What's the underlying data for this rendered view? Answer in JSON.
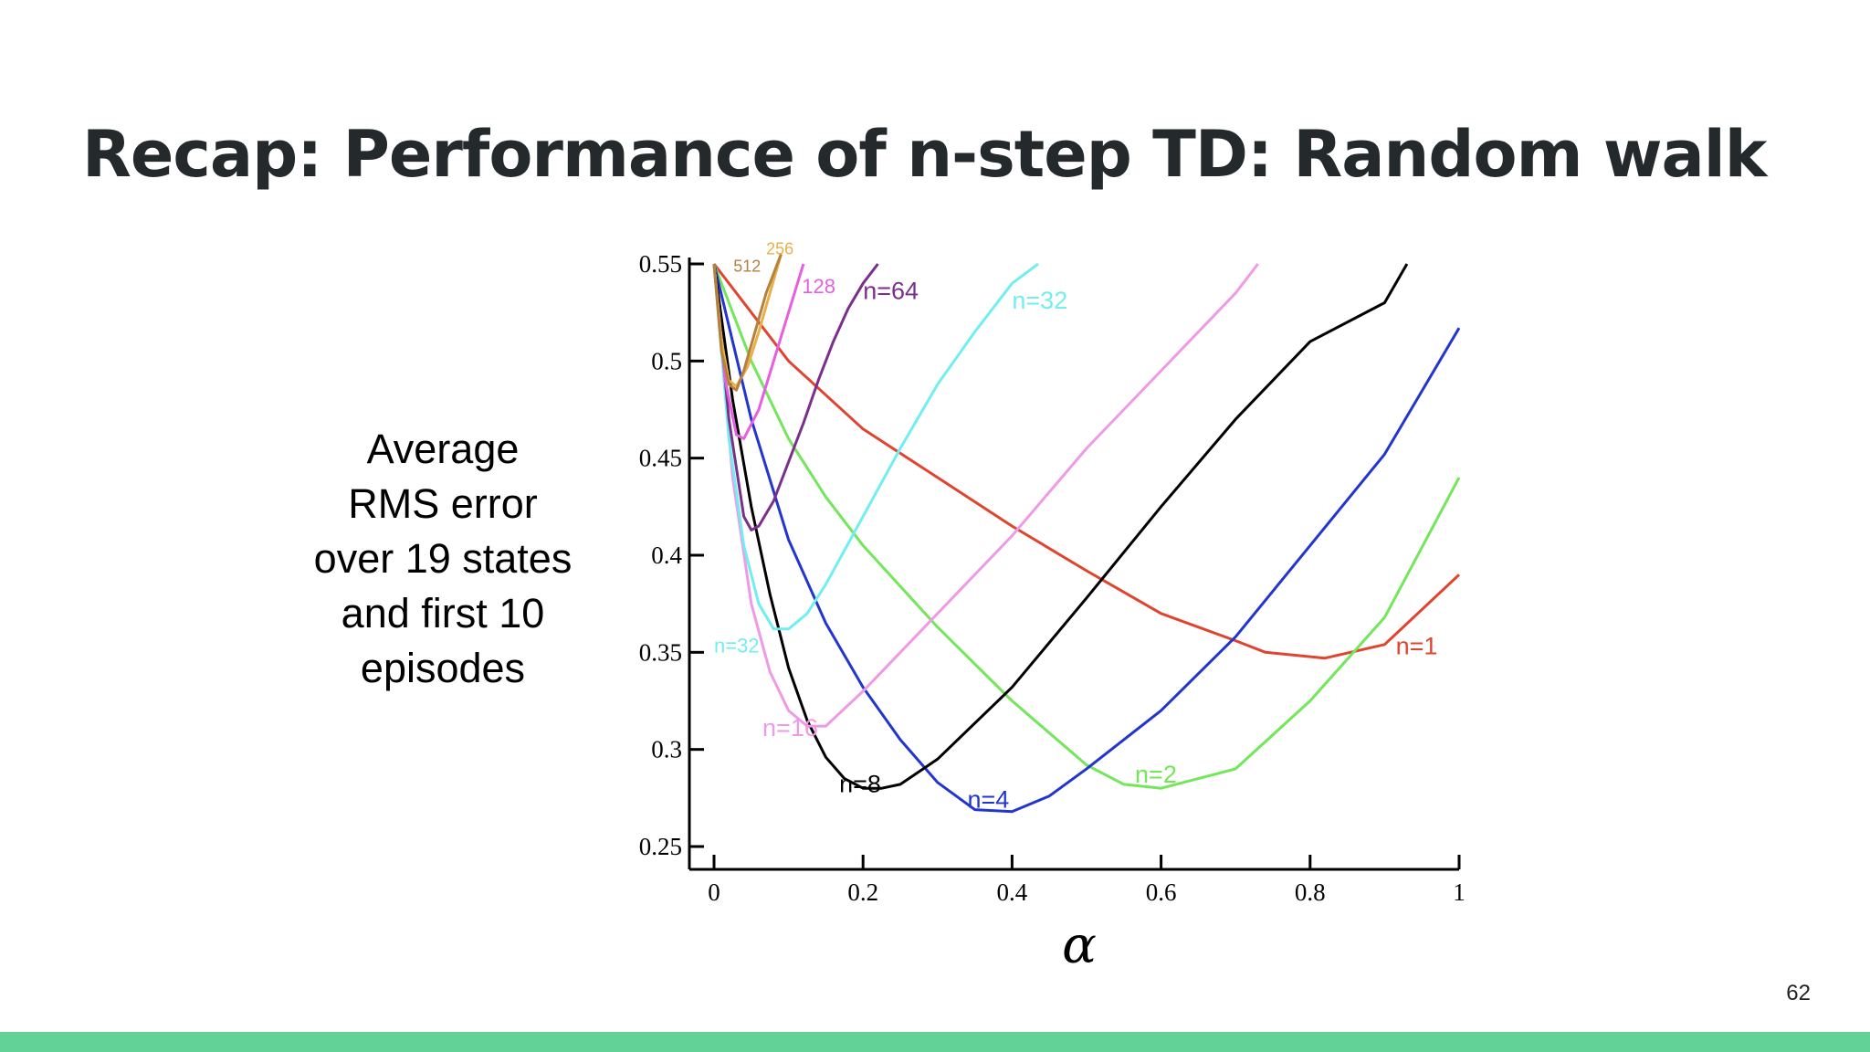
{
  "slide": {
    "title": "Recap: Performance of n-step TD: Random walk",
    "ylabel_lines": [
      "Average",
      "RMS error",
      "over 19 states",
      "and first 10",
      "episodes"
    ],
    "page_number": "62",
    "footer_color": "#63d297"
  },
  "chart_data": {
    "type": "line",
    "xlabel": "α",
    "ylabel": "Average RMS error over 19 states and first 10 episodes",
    "xlim": [
      0,
      1
    ],
    "ylim": [
      0.25,
      0.55
    ],
    "x_ticks": [
      "0",
      "0.2",
      "0.4",
      "0.6",
      "0.8",
      "1"
    ],
    "y_ticks": [
      "0.25",
      "0.3",
      "0.35",
      "0.4",
      "0.45",
      "0.5",
      "0.55"
    ],
    "grid": false,
    "series": [
      {
        "name": "n=1",
        "color": "#e0442e",
        "label_at": [
          0.915,
          0.349
        ],
        "label_size": 27,
        "x": [
          0,
          0.1,
          0.2,
          0.3,
          0.4,
          0.5,
          0.6,
          0.7,
          0.74,
          0.82,
          0.9,
          1.0
        ],
        "y": [
          0.55,
          0.5,
          0.465,
          0.44,
          0.415,
          0.392,
          0.37,
          0.356,
          0.35,
          0.347,
          0.354,
          0.39
        ]
      },
      {
        "name": "n=2",
        "color": "#73e65a",
        "label_at": [
          0.565,
          0.283
        ],
        "label_size": 27,
        "x": [
          0,
          0.05,
          0.1,
          0.15,
          0.2,
          0.3,
          0.4,
          0.5,
          0.55,
          0.6,
          0.7,
          0.8,
          0.9,
          1.0
        ],
        "y": [
          0.55,
          0.5,
          0.46,
          0.43,
          0.405,
          0.363,
          0.325,
          0.292,
          0.282,
          0.28,
          0.29,
          0.325,
          0.368,
          0.44
        ]
      },
      {
        "name": "n=4",
        "color": "#2335d0",
        "label_at": [
          0.34,
          0.27
        ],
        "label_size": 27,
        "x": [
          0,
          0.05,
          0.1,
          0.15,
          0.2,
          0.25,
          0.3,
          0.35,
          0.4,
          0.45,
          0.5,
          0.6,
          0.7,
          0.8,
          0.9,
          1.0
        ],
        "y": [
          0.55,
          0.47,
          0.408,
          0.365,
          0.332,
          0.305,
          0.283,
          0.269,
          0.268,
          0.276,
          0.29,
          0.32,
          0.358,
          0.405,
          0.452,
          0.517
        ]
      },
      {
        "name": "n=8",
        "color": "#000000",
        "label_at": [
          0.168,
          0.278
        ],
        "label_size": 27,
        "x": [
          0,
          0.025,
          0.05,
          0.075,
          0.1,
          0.125,
          0.15,
          0.175,
          0.2,
          0.225,
          0.25,
          0.3,
          0.4,
          0.5,
          0.6,
          0.7,
          0.8,
          0.9,
          0.93
        ],
        "y": [
          0.55,
          0.48,
          0.425,
          0.38,
          0.342,
          0.315,
          0.296,
          0.285,
          0.28,
          0.28,
          0.282,
          0.295,
          0.332,
          0.378,
          0.425,
          0.47,
          0.51,
          0.53,
          0.55
        ]
      },
      {
        "name": "n=16",
        "color": "#ef9ae6",
        "label_at": [
          0.065,
          0.307
        ],
        "label_size": 27,
        "x": [
          0,
          0.025,
          0.05,
          0.075,
          0.1,
          0.125,
          0.15,
          0.2,
          0.3,
          0.4,
          0.5,
          0.6,
          0.7,
          0.73
        ],
        "y": [
          0.55,
          0.44,
          0.375,
          0.34,
          0.32,
          0.312,
          0.312,
          0.33,
          0.37,
          0.41,
          0.455,
          0.495,
          0.535,
          0.55
        ]
      },
      {
        "name": "n=32",
        "color": "#73eef0",
        "label_at": [
          0.0,
          0.35
        ],
        "label_size": 22,
        "x": [
          0,
          0.02,
          0.04,
          0.06,
          0.08,
          0.1,
          0.125,
          0.15,
          0.2,
          0.25,
          0.3,
          0.35,
          0.4,
          0.435
        ],
        "y": [
          0.55,
          0.46,
          0.405,
          0.375,
          0.362,
          0.362,
          0.37,
          0.385,
          0.42,
          0.455,
          0.488,
          0.515,
          0.54,
          0.55
        ]
      },
      {
        "name": "n=32",
        "color": "#73eef0",
        "label_at": [
          0.4,
          0.527
        ],
        "label_size": 27,
        "x": [],
        "y": []
      },
      {
        "name": "n=64",
        "color": "#7a2f8c",
        "label_at": [
          0.2,
          0.532
        ],
        "label_size": 27,
        "x": [
          0,
          0.02,
          0.04,
          0.05,
          0.06,
          0.08,
          0.1,
          0.12,
          0.14,
          0.16,
          0.18,
          0.2,
          0.22
        ],
        "y": [
          0.55,
          0.47,
          0.42,
          0.413,
          0.415,
          0.428,
          0.448,
          0.468,
          0.49,
          0.51,
          0.527,
          0.54,
          0.55
        ]
      },
      {
        "name": "128",
        "color": "#e65fe0",
        "label_at": [
          0.118,
          0.535
        ],
        "label_size": 22,
        "x": [
          0,
          0.015,
          0.03,
          0.04,
          0.06,
          0.08,
          0.1,
          0.12
        ],
        "y": [
          0.55,
          0.49,
          0.462,
          0.46,
          0.475,
          0.5,
          0.525,
          0.55
        ]
      },
      {
        "name": "256",
        "color": "#e8b04a",
        "label_at": [
          0.07,
          0.555
        ],
        "label_size": 18,
        "x": [
          0,
          0.01,
          0.02,
          0.03,
          0.045,
          0.06,
          0.075,
          0.09
        ],
        "y": [
          0.55,
          0.51,
          0.49,
          0.487,
          0.497,
          0.515,
          0.535,
          0.555
        ]
      },
      {
        "name": "512",
        "color": "#b4813e",
        "label_at": [
          0.026,
          0.546
        ],
        "label_size": 18,
        "x": [
          0,
          0.01,
          0.02,
          0.03,
          0.04,
          0.055,
          0.07,
          0.09
        ],
        "y": [
          0.55,
          0.505,
          0.488,
          0.485,
          0.495,
          0.515,
          0.535,
          0.555
        ]
      }
    ]
  }
}
